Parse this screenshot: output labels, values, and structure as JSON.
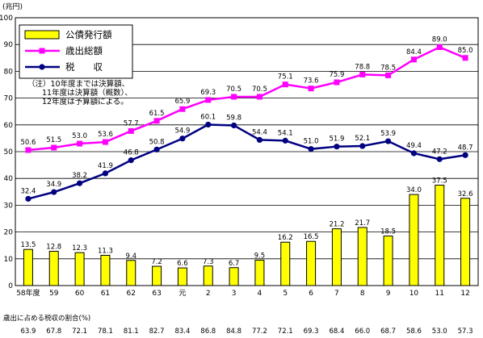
{
  "chart_data": {
    "type": "bar+line",
    "y_unit": "(兆円)",
    "ylim": [
      0,
      100
    ],
    "y_ticks": [
      0,
      10,
      20,
      30,
      40,
      50,
      60,
      70,
      80,
      90,
      100
    ],
    "categories": [
      "58年度",
      "59",
      "60",
      "61",
      "62",
      "63",
      "元",
      "2",
      "3",
      "4",
      "5",
      "6",
      "7",
      "8",
      "9",
      "10",
      "11",
      "12"
    ],
    "bars": {
      "name": "公債発行額",
      "color": "#ffff00",
      "values": [
        13.5,
        12.8,
        12.3,
        11.3,
        9.4,
        7.2,
        6.6,
        7.3,
        6.7,
        9.5,
        16.2,
        16.5,
        21.2,
        21.7,
        18.5,
        34.0,
        37.5,
        32.6
      ]
    },
    "lines": [
      {
        "name": "歳出総額",
        "color": "#ff00ff",
        "marker": "square",
        "values": [
          50.6,
          51.5,
          53.0,
          53.6,
          57.7,
          61.5,
          65.9,
          69.3,
          70.5,
          70.5,
          75.1,
          73.6,
          75.9,
          78.8,
          78.5,
          84.4,
          89.0,
          85.0
        ]
      },
      {
        "name": "税　　収",
        "color": "#000080",
        "marker": "circle",
        "values": [
          32.4,
          34.9,
          38.2,
          41.9,
          46.8,
          50.8,
          54.9,
          60.1,
          59.8,
          54.4,
          54.1,
          51.0,
          51.9,
          52.1,
          53.9,
          49.4,
          47.2,
          48.7
        ]
      }
    ],
    "legend": {
      "placement": "top-left",
      "items": [
        {
          "label": "公債発行額",
          "kind": "bar"
        },
        {
          "label": "歳出総額",
          "kind": "line-square"
        },
        {
          "label": "税　　収",
          "kind": "line-circle"
        }
      ]
    },
    "note": [
      "（注）10年度までは決算額、",
      "11年度は決算額（概数）、",
      "12年度は予算額による。"
    ],
    "ratio": {
      "label": "歳出に占める税収の割合(%)",
      "values": [
        "63.9",
        "67.8",
        "72.1",
        "78.1",
        "81.1",
        "82.7",
        "83.4",
        "86.8",
        "84.8",
        "77.2",
        "72.1",
        "69.3",
        "68.4",
        "66.0",
        "68.7",
        "58.6",
        "53.0",
        "57.3"
      ]
    }
  }
}
